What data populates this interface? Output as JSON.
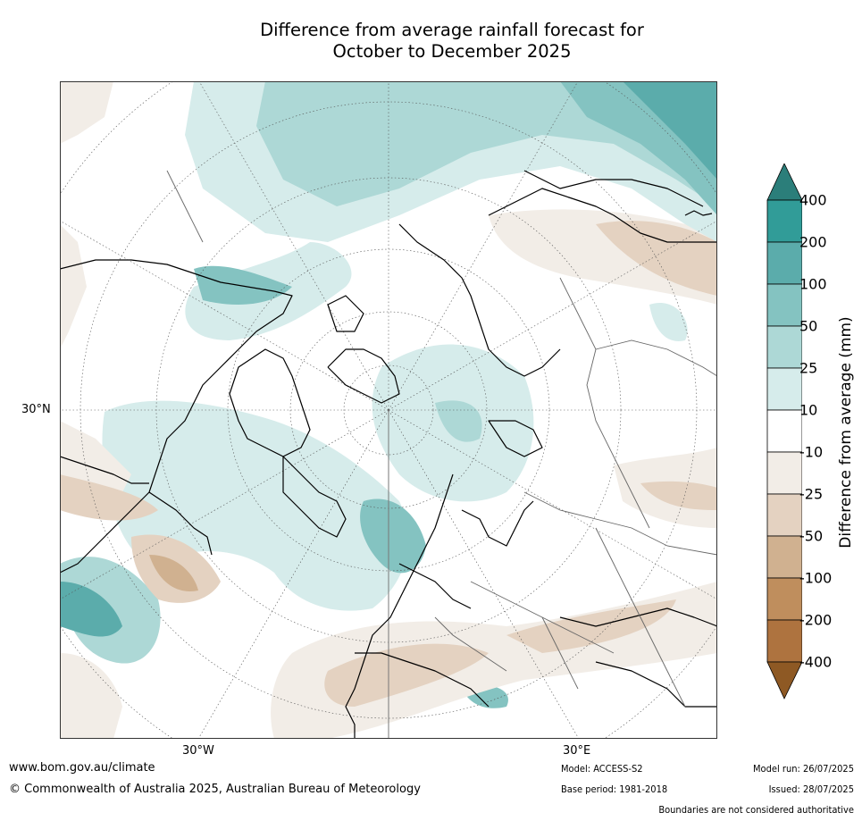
{
  "title_line1": "Difference from average rainfall forecast for",
  "title_line2": "October to December 2025",
  "map": {
    "lat_label": "30°N",
    "lon_label_west": "30°W",
    "lon_label_east": "30°E"
  },
  "colorbar": {
    "title": "Difference from average (mm)",
    "ticks": [
      "400",
      "200",
      "100",
      "50",
      "25",
      "10",
      "-10",
      "-25",
      "-50",
      "-100",
      "-200",
      "-400"
    ],
    "colors": {
      "over": "#2b7e7a",
      "c1": "#319c98",
      "c2": "#5bacab",
      "c3": "#84c3c1",
      "c4": "#add8d6",
      "c5": "#d6eceb",
      "neutral": "#ffffff",
      "b5": "#f2ede7",
      "b4": "#e4d2c1",
      "b3": "#d0b190",
      "b2": "#bf8e5d",
      "b1": "#ae733f",
      "under": "#8e5924"
    }
  },
  "footer": {
    "url": "www.bom.gov.au/climate",
    "copyright": "© Commonwealth of Australia 2025, Australian Bureau of Meteorology",
    "model": "Model: ACCESS-S2",
    "base_period": "Base period: 1981-2018",
    "model_run": "Model run: 26/07/2025",
    "issued": "Issued: 28/07/2025",
    "disclaimer": "Boundaries are not considered authoritative"
  }
}
